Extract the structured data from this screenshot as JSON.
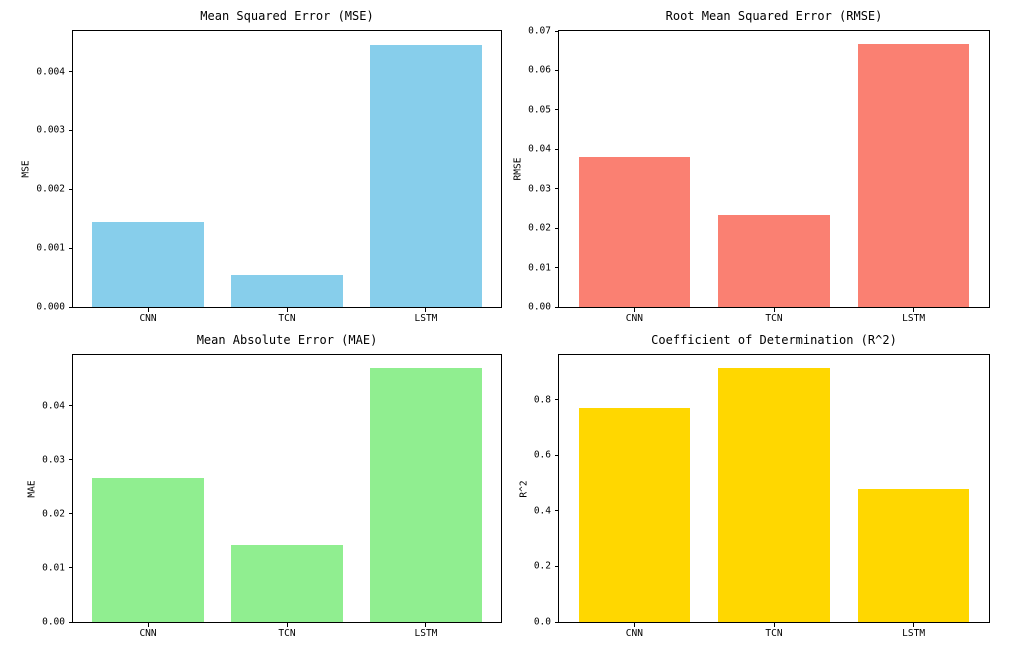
{
  "figure": {
    "background": "#ffffff",
    "layout": "2x2 subplots",
    "grid": false,
    "legend": "none"
  },
  "chart_data": [
    {
      "type": "bar",
      "title": "Mean Squared Error (MSE)",
      "xlabel": "",
      "ylabel": "MSE",
      "categories": [
        "CNN",
        "TCN",
        "LSTM"
      ],
      "values": [
        0.00145,
        0.00055,
        0.00446
      ],
      "yticks": [
        0,
        0.001,
        0.002,
        0.003,
        0.004
      ],
      "ytick_labels": [
        "0.000",
        "0.001",
        "0.002",
        "0.003",
        "0.004"
      ],
      "ylim": [
        0,
        0.00469
      ],
      "bar_color": "#87CEEB",
      "grid": false,
      "legend_position": "none"
    },
    {
      "type": "bar",
      "title": "Root Mean Squared Error (RMSE)",
      "xlabel": "",
      "ylabel": "RMSE",
      "categories": [
        "CNN",
        "TCN",
        "LSTM"
      ],
      "values": [
        0.038,
        0.0234,
        0.0667
      ],
      "yticks": [
        0,
        0.01,
        0.02,
        0.03,
        0.04,
        0.05,
        0.06,
        0.07
      ],
      "ytick_labels": [
        "0.00",
        "0.01",
        "0.02",
        "0.03",
        "0.04",
        "0.05",
        "0.06",
        "0.07"
      ],
      "ylim": [
        0,
        0.07
      ],
      "bar_color": "#FA8072",
      "grid": false,
      "legend_position": "none"
    },
    {
      "type": "bar",
      "title": "Mean Absolute Error (MAE)",
      "xlabel": "",
      "ylabel": "MAE",
      "categories": [
        "CNN",
        "TCN",
        "LSTM"
      ],
      "values": [
        0.0266,
        0.0143,
        0.047
      ],
      "yticks": [
        0,
        0.01,
        0.02,
        0.03,
        0.04
      ],
      "ytick_labels": [
        "0.00",
        "0.01",
        "0.02",
        "0.03",
        "0.04"
      ],
      "ylim": [
        0,
        0.0494
      ],
      "bar_color": "#90EE90",
      "grid": false,
      "legend_position": "none"
    },
    {
      "type": "bar",
      "title": "Coefficient of Determination (R^2)",
      "xlabel": "",
      "ylabel": "R^2",
      "categories": [
        "CNN",
        "TCN",
        "LSTM"
      ],
      "values": [
        0.77,
        0.915,
        0.478
      ],
      "yticks": [
        0,
        0.2,
        0.4,
        0.6,
        0.8
      ],
      "ytick_labels": [
        "0.0",
        "0.2",
        "0.4",
        "0.6",
        "0.8"
      ],
      "ylim": [
        0,
        0.961
      ],
      "bar_color": "#FFD700",
      "grid": false,
      "legend_position": "none"
    }
  ]
}
